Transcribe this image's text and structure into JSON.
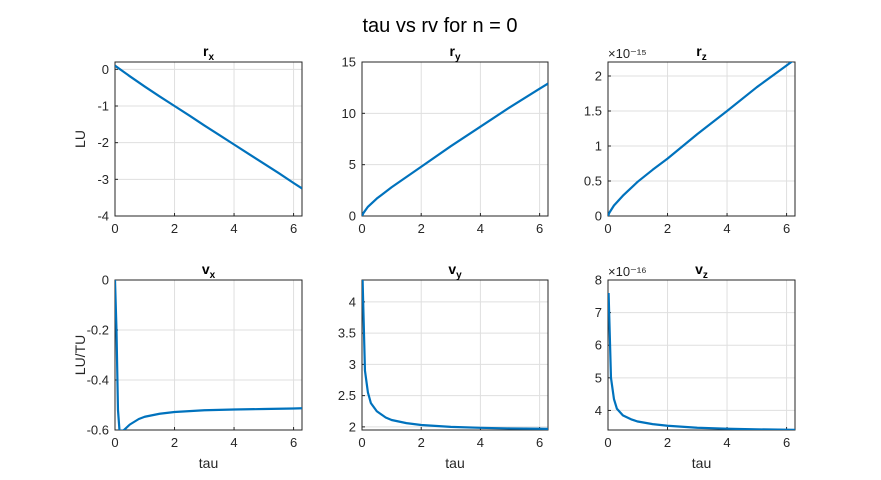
{
  "figure": {
    "title": "tau vs rv for n = 0"
  },
  "chart_data": [
    {
      "type": "line",
      "title": "r",
      "title_sub": "x",
      "xlabel": "",
      "ylabel": "LU",
      "xlim": [
        0,
        6.2832
      ],
      "ylim": [
        -4,
        0.2
      ],
      "xticks": [
        0,
        2,
        4,
        6
      ],
      "yticks": [
        -4,
        -3,
        -2,
        -1,
        0
      ],
      "ytick_labels": [
        "-4",
        "-3",
        "-2",
        "-1",
        "0"
      ],
      "exponent_label": "",
      "grid": true,
      "series": [
        {
          "color": "#0072bd",
          "x": [
            0,
            0.5,
            1,
            1.5,
            2,
            2.5,
            3,
            3.5,
            4,
            4.5,
            5,
            5.5,
            6,
            6.2832
          ],
          "y": [
            0.1,
            -0.19,
            -0.47,
            -0.74,
            -1.0,
            -1.26,
            -1.53,
            -1.79,
            -2.05,
            -2.31,
            -2.57,
            -2.83,
            -3.1,
            -3.25
          ]
        }
      ]
    },
    {
      "type": "line",
      "title": "r",
      "title_sub": "y",
      "xlabel": "",
      "ylabel": "",
      "xlim": [
        0,
        6.2832
      ],
      "ylim": [
        0,
        15
      ],
      "xticks": [
        0,
        2,
        4,
        6
      ],
      "yticks": [
        0,
        5,
        10,
        15
      ],
      "ytick_labels": [
        "0",
        "5",
        "10",
        "15"
      ],
      "exponent_label": "",
      "grid": true,
      "series": [
        {
          "color": "#0072bd",
          "x": [
            0,
            0.05,
            0.2,
            0.5,
            1,
            1.5,
            2,
            3,
            4,
            5,
            6,
            6.2832
          ],
          "y": [
            0,
            0.3,
            0.9,
            1.7,
            2.8,
            3.8,
            4.8,
            6.8,
            8.7,
            10.6,
            12.4,
            12.9
          ]
        }
      ]
    },
    {
      "type": "line",
      "title": "r",
      "title_sub": "z",
      "xlabel": "",
      "ylabel": "",
      "xlim": [
        0,
        6.2832
      ],
      "ylim": [
        0,
        2.2
      ],
      "xticks": [
        0,
        2,
        4,
        6
      ],
      "yticks": [
        0,
        0.5,
        1,
        1.5,
        2
      ],
      "ytick_labels": [
        "0",
        "0.5",
        "1",
        "1.5",
        "2"
      ],
      "exponent_label": "×10⁻¹⁵",
      "grid": true,
      "series": [
        {
          "color": "#0072bd",
          "x": [
            0,
            0.05,
            0.2,
            0.5,
            1,
            1.5,
            2,
            3,
            4,
            5,
            6,
            6.2832
          ],
          "y": [
            0,
            0.05,
            0.15,
            0.29,
            0.49,
            0.66,
            0.82,
            1.17,
            1.5,
            1.84,
            2.15,
            2.24
          ]
        }
      ]
    },
    {
      "type": "line",
      "title": "v",
      "title_sub": "x",
      "xlabel": "tau",
      "ylabel": "LU/TU",
      "xlim": [
        0,
        6.2832
      ],
      "ylim": [
        -0.6,
        0
      ],
      "xticks": [
        0,
        2,
        4,
        6
      ],
      "yticks": [
        -0.6,
        -0.4,
        -0.2,
        0
      ],
      "ytick_labels": [
        "-0.6",
        "-0.4",
        "-0.2",
        "0"
      ],
      "exponent_label": "",
      "grid": true,
      "series": [
        {
          "color": "#0072bd",
          "x": [
            0,
            0.05,
            0.1,
            0.15,
            0.2,
            0.3,
            0.5,
            0.8,
            1,
            1.5,
            2,
            3,
            4,
            5,
            6,
            6.2832
          ],
          "y": [
            0,
            -0.2,
            -0.52,
            -0.6,
            -0.605,
            -0.6,
            -0.578,
            -0.556,
            -0.547,
            -0.535,
            -0.528,
            -0.521,
            -0.518,
            -0.516,
            -0.514,
            -0.513
          ]
        }
      ]
    },
    {
      "type": "line",
      "title": "v",
      "title_sub": "y",
      "xlabel": "tau",
      "ylabel": "",
      "xlim": [
        0,
        6.2832
      ],
      "ylim": [
        1.95,
        4.35
      ],
      "xticks": [
        0,
        2,
        4,
        6
      ],
      "yticks": [
        2,
        2.5,
        3,
        3.5,
        4
      ],
      "ytick_labels": [
        "2",
        "2.5",
        "3",
        "3.5",
        "4"
      ],
      "exponent_label": "",
      "grid": true,
      "series": [
        {
          "color": "#0072bd",
          "x": [
            0.02,
            0.1,
            0.2,
            0.3,
            0.5,
            0.8,
            1,
            1.5,
            2,
            3,
            4,
            5,
            6,
            6.2832
          ],
          "y": [
            4.35,
            2.9,
            2.55,
            2.38,
            2.25,
            2.15,
            2.11,
            2.06,
            2.03,
            2.0,
            1.985,
            1.975,
            1.97,
            1.968
          ]
        }
      ]
    },
    {
      "type": "line",
      "title": "v",
      "title_sub": "z",
      "xlabel": "tau",
      "ylabel": "",
      "xlim": [
        0,
        6.2832
      ],
      "ylim": [
        3.4,
        8
      ],
      "xticks": [
        0,
        2,
        4,
        6
      ],
      "yticks": [
        4,
        5,
        6,
        7,
        8
      ],
      "ytick_labels": [
        "4",
        "5",
        "6",
        "7",
        "8"
      ],
      "exponent_label": "×10⁻¹⁶",
      "grid": true,
      "series": [
        {
          "color": "#0072bd",
          "x": [
            0.02,
            0.1,
            0.2,
            0.3,
            0.5,
            0.8,
            1,
            1.5,
            2,
            3,
            4,
            5,
            6,
            6.2832
          ],
          "y": [
            7.6,
            5.0,
            4.35,
            4.05,
            3.85,
            3.72,
            3.66,
            3.58,
            3.53,
            3.47,
            3.44,
            3.42,
            3.41,
            3.405
          ]
        }
      ]
    }
  ]
}
